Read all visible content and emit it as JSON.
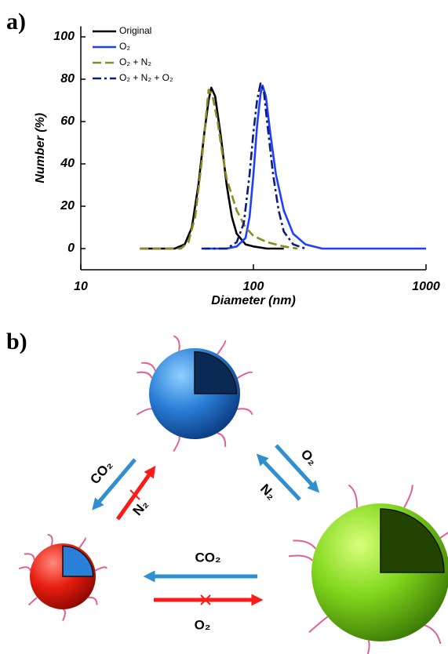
{
  "panel_a_label": "a)",
  "panel_b_label": "b)",
  "chart_data": {
    "type": "line",
    "xscale": "log",
    "x_label": "Diameter (nm)",
    "y_label": "Number (%)",
    "xlim": [
      10,
      1000
    ],
    "xticks": [
      10,
      100,
      1000
    ],
    "ylim": [
      -10,
      105
    ],
    "yticks": [
      0,
      20,
      40,
      60,
      80,
      100
    ],
    "legend": "top-left",
    "series": [
      {
        "name": "Original",
        "color": "#000000",
        "style": "solid",
        "x": [
          22,
          35,
          40,
          44,
          48,
          52,
          55,
          57,
          60,
          65,
          70,
          75,
          80,
          90,
          100,
          120,
          150
        ],
        "values": [
          0,
          0,
          2,
          10,
          30,
          55,
          70,
          76,
          72,
          52,
          30,
          15,
          7,
          2,
          1,
          0,
          0
        ]
      },
      {
        "name": "O₂",
        "color": "#1f3fff",
        "style": "solid",
        "x": [
          52,
          70,
          80,
          90,
          95,
          100,
          105,
          110,
          113,
          118,
          125,
          135,
          150,
          170,
          200,
          250,
          1000
        ],
        "values": [
          0,
          0,
          1,
          5,
          15,
          35,
          58,
          73,
          77,
          72,
          55,
          35,
          18,
          7,
          2,
          0,
          0
        ]
      },
      {
        "name": "O₂ + N₂",
        "color": "#8a8a1e",
        "style": "dash",
        "x": [
          22,
          38,
          42,
          46,
          50,
          53,
          55,
          58,
          62,
          66,
          70,
          80,
          90,
          100,
          120,
          150,
          180
        ],
        "values": [
          0,
          0,
          3,
          15,
          40,
          62,
          75,
          72,
          60,
          45,
          33,
          18,
          10,
          6,
          3,
          1,
          0
        ]
      },
      {
        "name": "O₂ + N₂ + O₂",
        "color": "#0d1d7a",
        "style": "dashdot",
        "x": [
          50,
          70,
          80,
          88,
          95,
          100,
          105,
          110,
          115,
          120,
          130,
          140,
          150,
          170,
          200
        ],
        "values": [
          0,
          0,
          3,
          12,
          35,
          55,
          70,
          78,
          74,
          60,
          35,
          18,
          8,
          2,
          0
        ]
      }
    ]
  },
  "diagram": {
    "arrows": [
      {
        "label": "CO₂"
      },
      {
        "label": "N₂"
      },
      {
        "label": "O₂"
      },
      {
        "label": "N₂"
      },
      {
        "label": "CO₂"
      },
      {
        "label": "O₂"
      }
    ]
  }
}
